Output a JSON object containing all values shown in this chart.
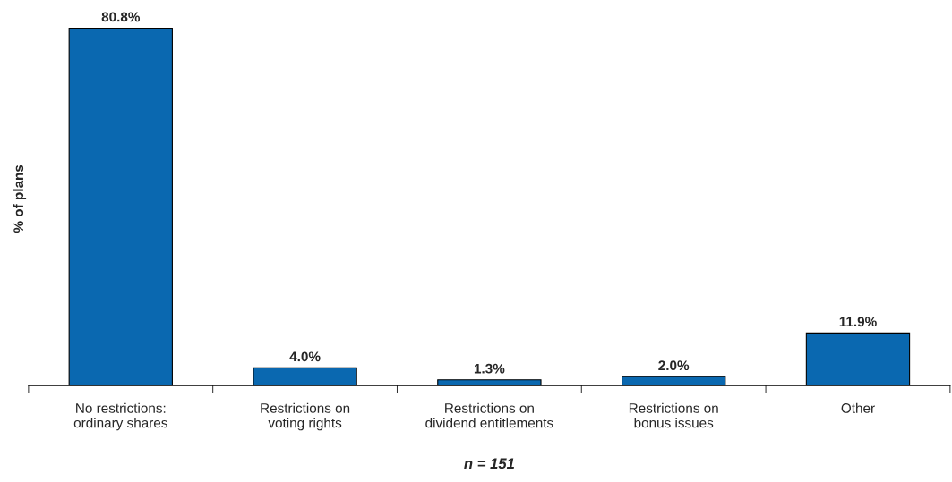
{
  "chart_data": {
    "type": "bar",
    "categories": [
      "No restrictions:\nordinary shares",
      "Restrictions on\nvoting rights",
      "Restrictions on\ndividend entitlements",
      "Restrictions on\nbonus issues",
      "Other"
    ],
    "values": [
      80.8,
      4.0,
      1.3,
      2.0,
      11.9
    ],
    "value_labels": [
      "80.8%",
      "4.0%",
      "1.3%",
      "2.0%",
      "11.9%"
    ],
    "color": "#0a68b0",
    "ylabel": "% of plans",
    "xlabel": "n = 151",
    "tick_labels": "x",
    "grid": false,
    "legend": false
  }
}
